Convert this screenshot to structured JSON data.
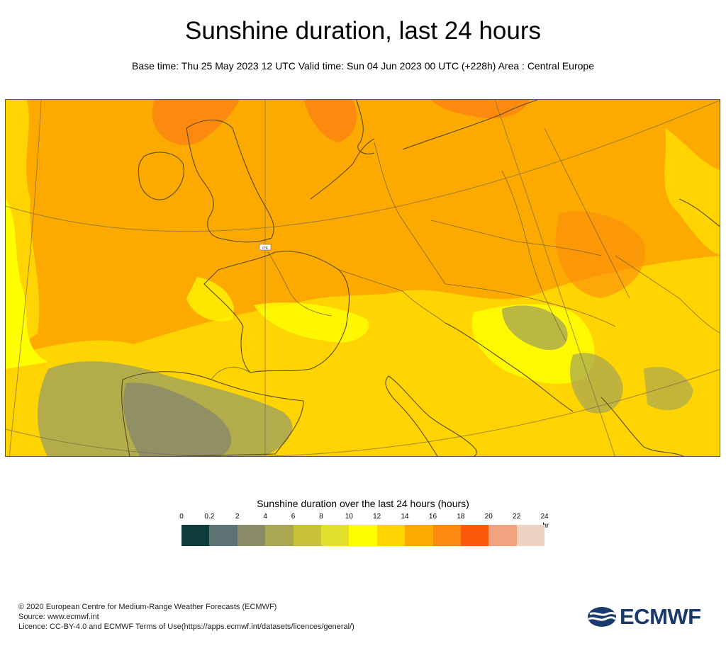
{
  "title": "Sunshine duration, last 24 hours",
  "subtitle": "Base time: Thu 25 May 2023 12 UTC Valid time: Sun 04 Jun 2023 00 UTC (+228h) Area : Central Europe",
  "map": {
    "area": "Central Europe",
    "meridian_label": "0°E",
    "colors": {
      "sea": "#fdaa00",
      "land": "#fdaa00",
      "high": "#fb8a0e",
      "mid": "#ffd700",
      "low": "#ffff00",
      "cloudy": "#aaa852",
      "grey": "#8b8c6a",
      "border": "#5a4a20"
    }
  },
  "legend": {
    "title": "Sunshine duration over the last 24 hours (hours)",
    "unit": "-hr",
    "ticks": [
      "0",
      "0.2",
      "2",
      "4",
      "6",
      "8",
      "10",
      "12",
      "14",
      "16",
      "18",
      "20",
      "22",
      "24"
    ],
    "colors": [
      "#0f3d3d",
      "#5e7474",
      "#8b8b6a",
      "#aaa852",
      "#c8c33a",
      "#e2df2c",
      "#ffff00",
      "#ffd400",
      "#fdaa00",
      "#fd8a0e",
      "#fc5a0a",
      "#f3a27f",
      "#efd1c2"
    ]
  },
  "footer": {
    "copyright": "© 2020 European Centre for Medium-Range Weather Forecasts (ECMWF)",
    "source": "Source: www.ecmwf.int",
    "licence": "Licence: CC-BY-4.0 and ECMWF Terms of Use(https://apps.ecmwf.int/datasets/licences/general/)"
  },
  "logo": {
    "text": "ECMWF"
  }
}
